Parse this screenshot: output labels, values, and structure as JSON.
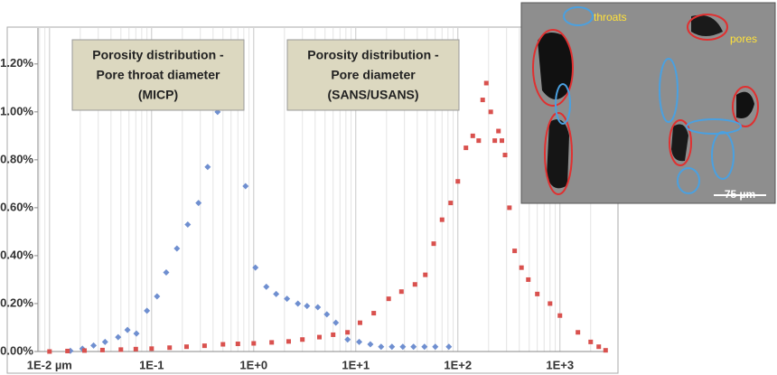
{
  "chart_data": {
    "type": "scatter",
    "xscale": "log",
    "grid": true,
    "xlim": [
      0.0077,
      2900
    ],
    "ylim": [
      0,
      1.35
    ],
    "xticks": [
      {
        "value": 0.01,
        "label": "1E-2  µm"
      },
      {
        "value": 0.1,
        "label": "1E-1"
      },
      {
        "value": 1,
        "label": "1E+0"
      },
      {
        "value": 10,
        "label": "1E+1"
      },
      {
        "value": 100,
        "label": "1E+2"
      },
      {
        "value": 1000,
        "label": "1E+3"
      }
    ],
    "yticks": [
      {
        "value": 0,
        "label": "0.00%"
      },
      {
        "value": 0.2,
        "label": "0.20%"
      },
      {
        "value": 0.4,
        "label": "0.40%"
      },
      {
        "value": 0.6,
        "label": "0.60%"
      },
      {
        "value": 0.8,
        "label": "0.80%"
      },
      {
        "value": 1.0,
        "label": "1.00%"
      },
      {
        "value": 1.2,
        "label": "1.20%"
      }
    ],
    "annotations": [
      [
        "Porosity distribution -",
        "Pore throat diameter",
        "(MICP)"
      ],
      [
        "Porosity distribution -",
        "Pore diameter",
        "(SANS/USANS)"
      ]
    ],
    "inset_labels": [
      "throats",
      "pores",
      "75 µm"
    ],
    "series": [
      {
        "name": "MICP",
        "color": "#6f8fd0",
        "x": [
          0.016,
          0.021,
          0.027,
          0.035,
          0.047,
          0.058,
          0.071,
          0.09,
          0.113,
          0.139,
          0.177,
          0.226,
          0.288,
          0.354,
          0.443,
          0.832,
          1.04,
          1.33,
          1.66,
          2.12,
          2.71,
          3.33,
          4.25,
          5.21,
          6.38,
          8.32,
          10.8,
          13.9,
          17.7,
          22.6,
          28.9,
          36.8,
          47.1,
          60.1,
          81.6
        ],
        "values": [
          0.003,
          0.012,
          0.025,
          0.04,
          0.06,
          0.09,
          0.075,
          0.17,
          0.23,
          0.33,
          0.43,
          0.53,
          0.62,
          0.77,
          1.0,
          0.69,
          0.35,
          0.27,
          0.24,
          0.22,
          0.2,
          0.19,
          0.185,
          0.155,
          0.12,
          0.05,
          0.04,
          0.03,
          0.02,
          0.02,
          0.02,
          0.02,
          0.02,
          0.02,
          0.02
        ]
      },
      {
        "name": "SANS/USANS",
        "color": "#d9514e",
        "x": [
          0.01,
          0.015,
          0.022,
          0.033,
          0.05,
          0.07,
          0.1,
          0.15,
          0.22,
          0.33,
          0.5,
          0.7,
          1,
          1.5,
          2.2,
          3,
          4.4,
          6,
          8.3,
          11,
          15,
          21,
          28,
          38,
          48,
          58,
          70,
          85,
          100,
          120,
          140,
          160,
          175,
          190,
          210,
          230,
          250,
          270,
          290,
          320,
          360,
          420,
          490,
          600,
          800,
          1000,
          1500,
          2000,
          2400,
          2800
        ],
        "values": [
          0.0,
          0.002,
          0.004,
          0.006,
          0.008,
          0.01,
          0.012,
          0.016,
          0.02,
          0.024,
          0.03,
          0.032,
          0.034,
          0.038,
          0.042,
          0.05,
          0.06,
          0.07,
          0.08,
          0.12,
          0.16,
          0.22,
          0.25,
          0.28,
          0.32,
          0.45,
          0.55,
          0.62,
          0.71,
          0.85,
          0.9,
          0.88,
          1.05,
          1.12,
          1.0,
          0.88,
          0.92,
          0.88,
          0.82,
          0.6,
          0.42,
          0.35,
          0.3,
          0.24,
          0.2,
          0.15,
          0.08,
          0.04,
          0.02,
          0.005
        ]
      }
    ]
  }
}
